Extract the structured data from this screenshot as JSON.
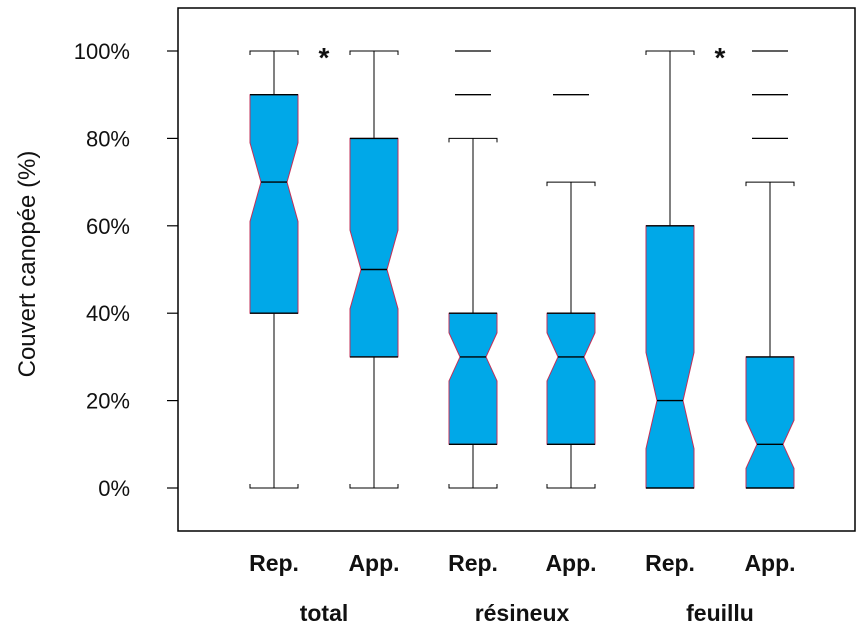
{
  "chart_data": {
    "type": "boxplot",
    "ylabel": "Couvert canopée (%)",
    "ylim": [
      0,
      100
    ],
    "yticks": [
      0,
      20,
      40,
      60,
      80,
      100
    ],
    "ytick_labels": [
      "0%",
      "20%",
      "40%",
      "60%",
      "80%",
      "100%"
    ],
    "categories": [
      "Rep.",
      "App.",
      "Rep.",
      "App.",
      "Rep.",
      "App."
    ],
    "groups": [
      {
        "label": "total",
        "members": [
          0,
          1
        ]
      },
      {
        "label": "résineux",
        "members": [
          2,
          3
        ]
      },
      {
        "label": "feuillu",
        "members": [
          4,
          5
        ]
      }
    ],
    "significance": [
      {
        "between": [
          0,
          1
        ],
        "label": "*"
      },
      {
        "between": [
          4,
          5
        ],
        "label": "*"
      }
    ],
    "boxes": [
      {
        "whisker_low": 0,
        "q1": 40,
        "median": 70,
        "q3": 90,
        "whisker_high": 100,
        "notch_low": 61,
        "notch_high": 79,
        "outliers": []
      },
      {
        "whisker_low": 0,
        "q1": 30,
        "median": 50,
        "q3": 80,
        "whisker_high": 100,
        "notch_low": 41,
        "notch_high": 59,
        "outliers": []
      },
      {
        "whisker_low": 0,
        "q1": 10,
        "median": 30,
        "q3": 40,
        "whisker_high": 80,
        "notch_low": 24.5,
        "notch_high": 35.5,
        "outliers": [
          90,
          100
        ]
      },
      {
        "whisker_low": 0,
        "q1": 10,
        "median": 30,
        "q3": 40,
        "whisker_high": 70,
        "notch_low": 24.5,
        "notch_high": 35.5,
        "outliers": [
          90
        ]
      },
      {
        "whisker_low": 0,
        "q1": 0,
        "median": 20,
        "q3": 60,
        "whisker_high": 100,
        "notch_low": 9,
        "notch_high": 31,
        "outliers": []
      },
      {
        "whisker_low": 0,
        "q1": 0,
        "median": 10,
        "q3": 30,
        "whisker_high": 70,
        "notch_low": 4.5,
        "notch_high": 15.5,
        "outliers": [
          80,
          90,
          100
        ]
      }
    ],
    "colors": {
      "box_fill": "#00a8e8",
      "box_edge": "#c0305a",
      "line": "#000000"
    }
  }
}
